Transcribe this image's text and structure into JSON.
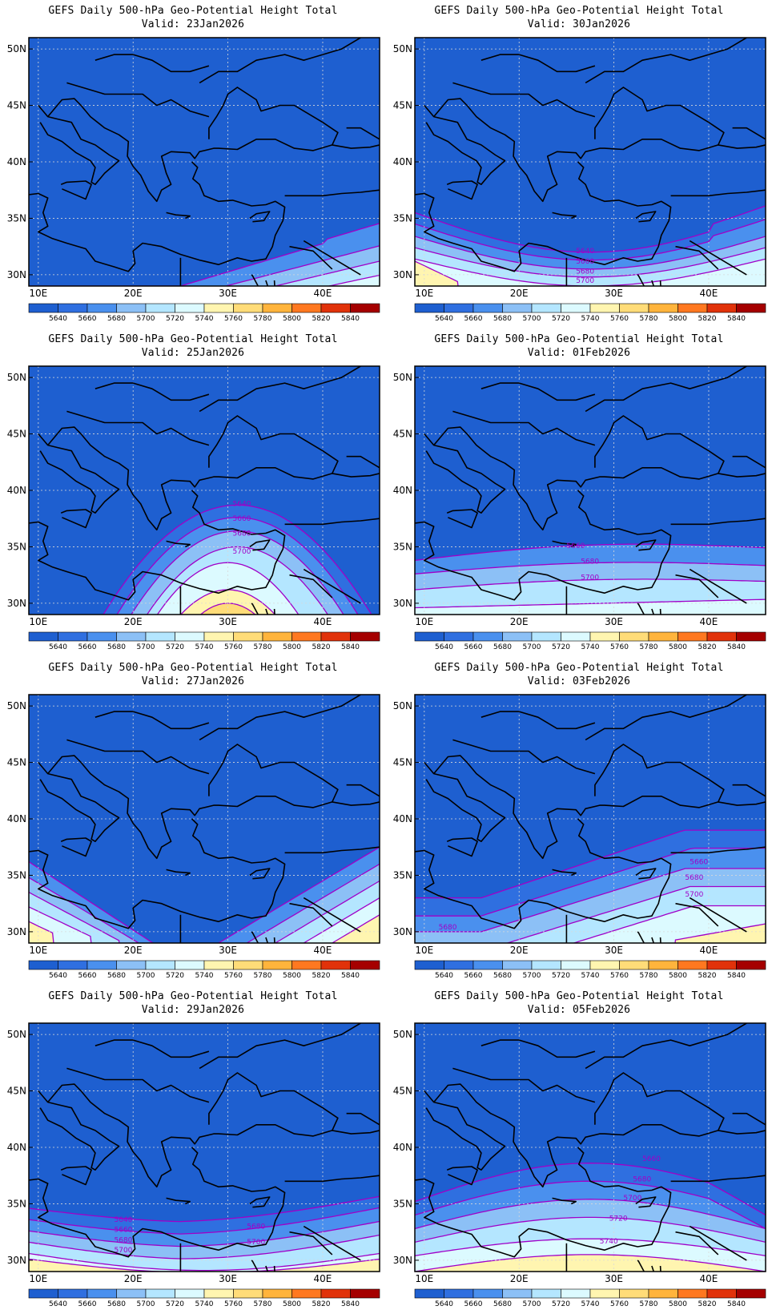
{
  "title": "GEFS Daily 500-hPa Geo-Potential Height Total",
  "latitude_labels": [
    "50N",
    "45N",
    "40N",
    "35N",
    "30N"
  ],
  "longitude_labels": [
    "10E",
    "20E",
    "30E",
    "40E"
  ],
  "colorbar": {
    "levels": [
      "5640",
      "5660",
      "5680",
      "5700",
      "5720",
      "5740",
      "5760",
      "5780",
      "5800",
      "5820",
      "5840"
    ],
    "colors": [
      "#1e5fd0",
      "#2f6fe0",
      "#4a90ee",
      "#8cc0f6",
      "#b4e6ff",
      "#dcfaff",
      "#fff5b0",
      "#ffdc78",
      "#ffb43c",
      "#ff7820",
      "#e1320a",
      "#a50000"
    ]
  },
  "panels": [
    {
      "id": "p1",
      "valid": "Valid: 23Jan2026",
      "labels": []
    },
    {
      "id": "p2",
      "valid": "Valid: 30Jan2026",
      "labels": [
        "5640",
        "5660",
        "5680",
        "5700"
      ]
    },
    {
      "id": "p3",
      "valid": "Valid: 25Jan2026",
      "labels": [
        "5640",
        "5660",
        "5680",
        "5700"
      ]
    },
    {
      "id": "p4",
      "valid": "Valid: 01Feb2026",
      "labels": [
        "5660",
        "5680",
        "5700"
      ]
    },
    {
      "id": "p5",
      "valid": "Valid: 27Jan2026",
      "labels": []
    },
    {
      "id": "p6",
      "valid": "Valid: 03Feb2026",
      "labels": [
        "5660",
        "5680",
        "5700",
        "5680"
      ]
    },
    {
      "id": "p7",
      "valid": "Valid: 29Jan2026",
      "labels": [
        "5640",
        "5660",
        "5680",
        "5700",
        "5680",
        "5700"
      ]
    },
    {
      "id": "p8",
      "valid": "Valid: 05Feb2026",
      "labels": [
        "5660",
        "5680",
        "5700",
        "5720",
        "5740"
      ]
    }
  ]
}
